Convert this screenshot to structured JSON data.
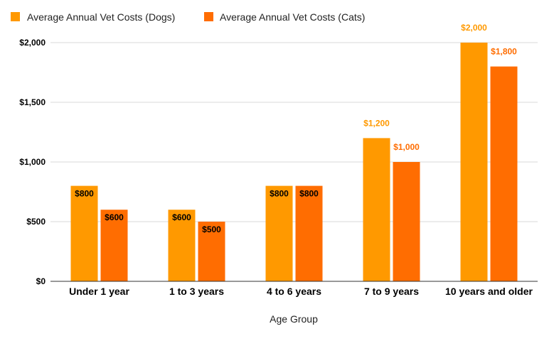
{
  "chart_data": {
    "type": "bar",
    "categories": [
      "Under 1 year",
      "1 to 3 years",
      "4 to 6 years",
      "7 to 9 years",
      "10 years and older"
    ],
    "series": [
      {
        "name": "Average Annual Vet Costs (Dogs)",
        "values": [
          800,
          600,
          800,
          1200,
          2000
        ],
        "color": "#FF9900",
        "labels": [
          "$800",
          "$600",
          "$800",
          "$1,200",
          "$2,000"
        ]
      },
      {
        "name": "Average Annual Vet Costs (Cats)",
        "values": [
          600,
          500,
          800,
          1000,
          1800
        ],
        "color": "#FF6D01",
        "labels": [
          "$600",
          "$500",
          "$800",
          "$1,000",
          "$1,800"
        ]
      }
    ],
    "xlabel": "Age Group",
    "ylabel": "",
    "ylim": [
      0,
      2000
    ],
    "yticks": [
      0,
      500,
      1000,
      1500,
      2000
    ],
    "ytick_labels": [
      "$0",
      "$500",
      "$1,000",
      "$1,500",
      "$2,000"
    ],
    "grid": true,
    "legend": "top-left"
  }
}
